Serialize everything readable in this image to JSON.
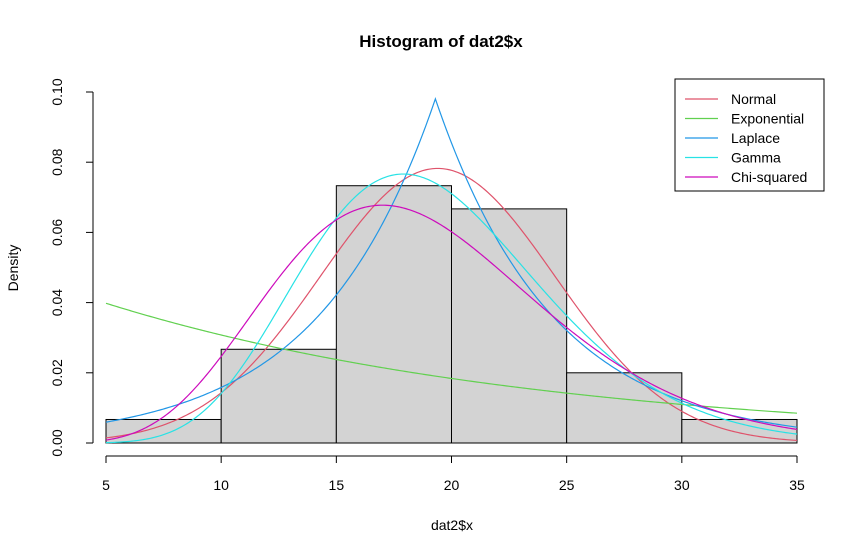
{
  "chart_data": {
    "type": "histogram",
    "title": "Histogram of dat2$x",
    "xlabel": "dat2$x",
    "ylabel": "Density",
    "xlim": [
      5,
      35
    ],
    "ylim": [
      0,
      0.1
    ],
    "x_ticks": [
      "5",
      "10",
      "15",
      "20",
      "25",
      "30",
      "35"
    ],
    "y_ticks": [
      "0.00",
      "0.02",
      "0.04",
      "0.06",
      "0.08",
      "0.10"
    ],
    "bar_fill": "#d3d3d3",
    "bins": [
      {
        "from": 5,
        "to": 10,
        "density": 0.0067
      },
      {
        "from": 10,
        "to": 15,
        "density": 0.0267
      },
      {
        "from": 15,
        "to": 20,
        "density": 0.0733
      },
      {
        "from": 20,
        "to": 25,
        "density": 0.0667
      },
      {
        "from": 25,
        "to": 30,
        "density": 0.02
      },
      {
        "from": 30,
        "to": 35,
        "density": 0.0067
      }
    ],
    "series": [
      {
        "name": "Normal",
        "color": "#DF536B",
        "dist": "normal",
        "params": {
          "mean": 19.4,
          "sd": 5.1
        }
      },
      {
        "name": "Exponential",
        "color": "#61D04F",
        "dist": "exponential",
        "params": {
          "rate": 0.0515
        }
      },
      {
        "name": "Laplace",
        "color": "#2297E6",
        "dist": "laplace",
        "params": {
          "mu": 19.3,
          "b": 5.1
        }
      },
      {
        "name": "Gamma",
        "color": "#28E2E5",
        "dist": "gamma",
        "params": {
          "shape": 13,
          "rate": 0.67
        }
      },
      {
        "name": "Chi-squared",
        "color": "#CD0BBC",
        "dist": "chisq",
        "params": {
          "df": 19
        }
      }
    ],
    "legend": {
      "position": "top-right"
    }
  }
}
